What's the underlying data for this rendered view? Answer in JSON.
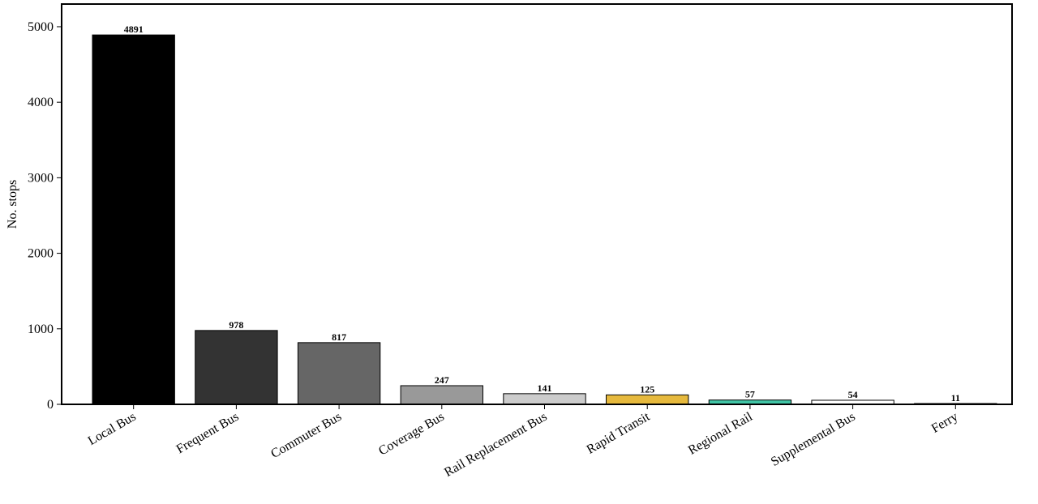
{
  "chart_data": {
    "type": "bar",
    "title": "",
    "xlabel": "",
    "ylabel": "No. stops",
    "ylim": [
      0,
      5300
    ],
    "yticks": [
      0,
      1000,
      2000,
      3000,
      4000,
      5000
    ],
    "grid": false,
    "legend": "none",
    "categories": [
      "Local Bus",
      "Frequent Bus",
      "Commuter Bus",
      "Coverage Bus",
      "Rail Replacement Bus",
      "Rapid Transit",
      "Regional Rail",
      "Supplemental Bus",
      "Ferry"
    ],
    "values": [
      4891,
      978,
      817,
      247,
      141,
      125,
      57,
      54,
      11
    ],
    "colors": [
      "#000000",
      "#333333",
      "#666666",
      "#999999",
      "#cccccc",
      "#e6b93d",
      "#40c4a5",
      "#ffffff",
      "#111111"
    ]
  }
}
